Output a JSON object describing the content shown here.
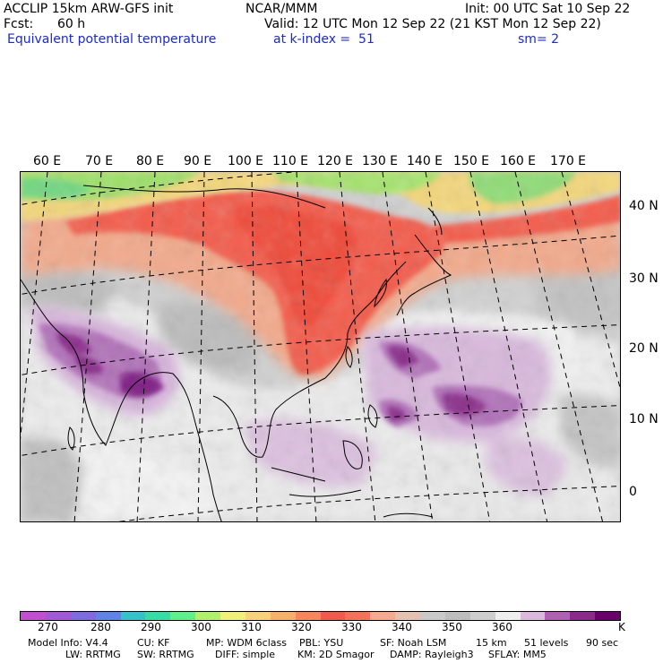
{
  "header": {
    "model": "ACCLIP 15km ARW-GFS init",
    "org": "NCAR/MMM",
    "init": "Init: 00 UTC Sat 10 Sep 22",
    "fcst_label": "Fcst:",
    "fcst_value": "60 h",
    "valid": "Valid: 12 UTC Mon 12 Sep 22 (21 KST Mon 12 Sep 22)",
    "field": "Equivalent potential temperature",
    "level": "at k-index =  51",
    "smooth": "sm= 2"
  },
  "map": {
    "lon_labels": [
      "60 E",
      "70 E",
      "80 E",
      "90 E",
      "100 E",
      "110 E",
      "120 E",
      "130 E",
      "140 E",
      "150 E",
      "160 E",
      "170 E"
    ],
    "lat_labels": [
      "40 N",
      "30 N",
      "20 N",
      "10 N",
      "0"
    ]
  },
  "colorbar": {
    "colors": [
      "#c24fcf",
      "#a259d8",
      "#7f6be0",
      "#5f84e6",
      "#33c3c9",
      "#35dca5",
      "#5ef08a",
      "#b0f06a",
      "#eef07a",
      "#f8d27a",
      "#f7b069",
      "#f7865c",
      "#f25a4d",
      "#f4725a",
      "#f5a98e",
      "#e5c1b0",
      "#c9c9c9",
      "#bdbdbd",
      "#cecece",
      "#eeeeee",
      "#dcb8dc",
      "#b060b0",
      "#8a2a8a",
      "#6a006a"
    ],
    "ticks": [
      "270",
      "280",
      "290",
      "300",
      "310",
      "320",
      "330",
      "340",
      "350",
      "360"
    ],
    "unit": "K"
  },
  "model_info": {
    "line1": [
      "Model Info: V4.4",
      "CU: KF",
      "MP: WDM 6class",
      "PBL: YSU",
      "SF: Noah LSM",
      "15 km",
      "51 levels",
      "90 sec"
    ],
    "line2": [
      "LW: RRTMG",
      "SW: RRTMG",
      "DIFF: simple",
      "KM: 2D Smagor",
      "DAMP: Rayleigh3",
      "SFLAY: MM5"
    ]
  }
}
